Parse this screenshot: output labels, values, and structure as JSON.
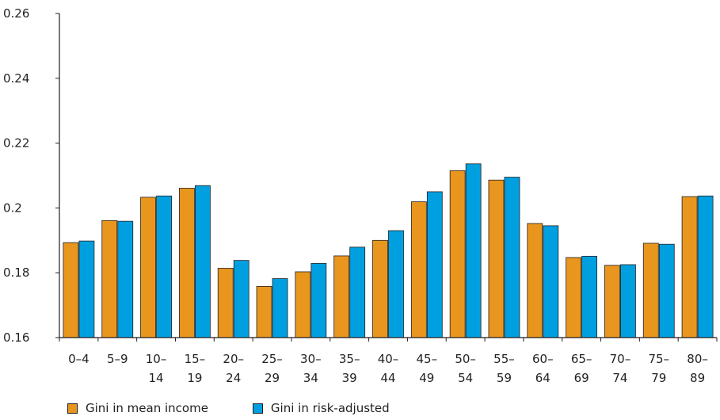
{
  "chart_data": {
    "type": "bar",
    "categories": [
      [
        "0–4",
        ""
      ],
      [
        "5–9",
        ""
      ],
      [
        "10–",
        "14"
      ],
      [
        "15–",
        "19"
      ],
      [
        "20–",
        "24"
      ],
      [
        "25–",
        "29"
      ],
      [
        "30–",
        "34"
      ],
      [
        "35–",
        "39"
      ],
      [
        "40–",
        "44"
      ],
      [
        "45–",
        "49"
      ],
      [
        "50–",
        "54"
      ],
      [
        "55–",
        "59"
      ],
      [
        "60–",
        "64"
      ],
      [
        "65–",
        "69"
      ],
      [
        "70–",
        "74"
      ],
      [
        "75–",
        "79"
      ],
      [
        "80–",
        "89"
      ]
    ],
    "series": [
      {
        "name": "Gini in mean income",
        "color": "#e8961e",
        "values": [
          0.1893,
          0.1961,
          0.2033,
          0.2061,
          0.1814,
          0.1758,
          0.1803,
          0.1852,
          0.19,
          0.2019,
          0.2115,
          0.2086,
          0.1952,
          0.1847,
          0.1823,
          0.1891,
          0.2035
        ]
      },
      {
        "name": "Gini in risk-adjusted",
        "color": "#00a0e0",
        "values": [
          0.1898,
          0.1959,
          0.2037,
          0.2069,
          0.1838,
          0.1782,
          0.1829,
          0.1879,
          0.193,
          0.205,
          0.2136,
          0.2095,
          0.1945,
          0.1851,
          0.1825,
          0.1888,
          0.2037
        ]
      }
    ],
    "yticks": [
      "0.16",
      "0.18",
      "0.2",
      "0.22",
      "0.24",
      "0.26"
    ],
    "ylim": [
      0.16,
      0.26
    ],
    "grid": false,
    "legend_position": "bottom-left"
  }
}
